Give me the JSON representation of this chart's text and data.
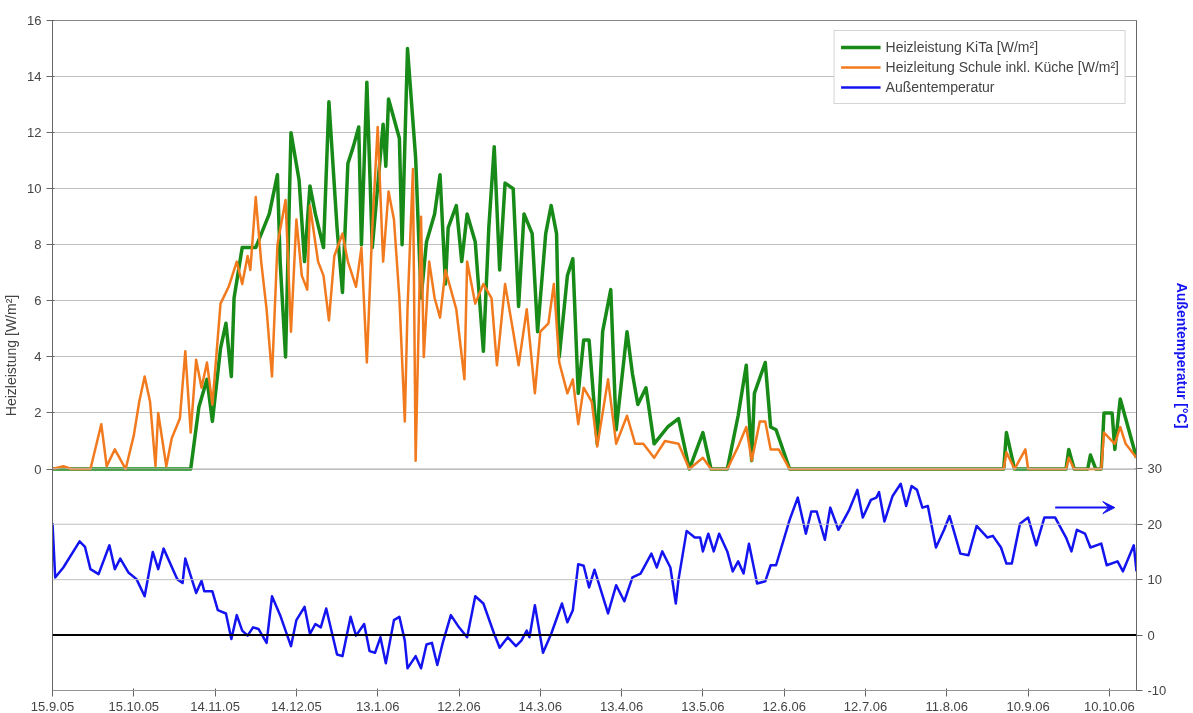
{
  "chart_data": {
    "type": "line",
    "xlabel": null,
    "ylabel": "Heizleistung [W/m²]",
    "y2label": "Außentemperatur [°C]",
    "xlim": [
      "2005-09-15",
      "2006-10-20"
    ],
    "xticks": [
      {
        "value": "2005-09-15",
        "label": "15.9.05"
      },
      {
        "value": "2005-10-15",
        "label": "15.10.05"
      },
      {
        "value": "2005-11-14",
        "label": "14.11.05"
      },
      {
        "value": "2005-12-14",
        "label": "14.12.05"
      },
      {
        "value": "2006-01-13",
        "label": "13.1.06"
      },
      {
        "value": "2006-02-12",
        "label": "12.2.06"
      },
      {
        "value": "2006-03-14",
        "label": "14.3.06"
      },
      {
        "value": "2006-04-13",
        "label": "13.4.06"
      },
      {
        "value": "2006-05-13",
        "label": "13.5.06"
      },
      {
        "value": "2006-06-12",
        "label": "12.6.06"
      },
      {
        "value": "2006-07-12",
        "label": "12.7.06"
      },
      {
        "value": "2006-08-11",
        "label": "11.8.06"
      },
      {
        "value": "2006-09-10",
        "label": "10.9.06"
      },
      {
        "value": "2006-10-10",
        "label": "10.10.06"
      }
    ],
    "ylim": [
      -7.9,
      16
    ],
    "yticks": [
      0,
      2,
      4,
      6,
      8,
      10,
      12,
      14,
      16
    ],
    "y2lim": [
      -10,
      110.9
    ],
    "y2ticks": [
      -10,
      0,
      10,
      20,
      30
    ],
    "grid": "y",
    "legend": "top right",
    "ref_lines": [
      {
        "axis": "y2",
        "value": 0,
        "color": "#000000"
      }
    ],
    "series": [
      {
        "name": "Heizleistung KiTa [W/m²]",
        "color": "#178a17",
        "x": [
          "2005-09-15",
          "2005-11-03",
          "2005-11-05",
          "2005-11-08",
          "2005-11-11",
          "2005-11-13",
          "2005-11-16",
          "2005-11-18",
          "2005-11-20",
          "2005-11-21",
          "2005-11-24",
          "2005-11-29",
          "2005-12-04",
          "2005-12-07",
          "2005-12-08",
          "2005-12-10",
          "2005-12-12",
          "2005-12-15",
          "2005-12-17",
          "2005-12-19",
          "2005-12-21",
          "2005-12-24",
          "2005-12-26",
          "2005-12-29",
          "2005-12-31",
          "2006-01-02",
          "2006-01-04",
          "2006-01-06",
          "2006-01-07",
          "2006-01-09",
          "2006-01-11",
          "2006-01-15",
          "2006-01-16",
          "2006-01-17",
          "2006-01-21",
          "2006-01-22",
          "2006-01-24",
          "2006-01-27",
          "2006-01-29",
          "2006-01-31",
          "2006-02-03",
          "2006-02-05",
          "2006-02-07",
          "2006-02-08",
          "2006-02-11",
          "2006-02-13",
          "2006-02-15",
          "2006-02-18",
          "2006-02-21",
          "2006-02-23",
          "2006-02-25",
          "2006-02-27",
          "2006-03-01",
          "2006-03-04",
          "2006-03-06",
          "2006-03-08",
          "2006-03-11",
          "2006-03-13",
          "2006-03-16",
          "2006-03-18",
          "2006-03-20",
          "2006-03-21",
          "2006-03-24",
          "2006-03-26",
          "2006-03-28",
          "2006-03-30",
          "2006-04-01",
          "2006-04-04",
          "2006-04-06",
          "2006-04-09",
          "2006-04-11",
          "2006-04-15",
          "2006-04-17",
          "2006-04-19",
          "2006-04-22",
          "2006-04-25",
          "2006-04-30",
          "2006-05-04",
          "2006-05-08",
          "2006-05-13",
          "2006-05-16",
          "2006-05-22",
          "2006-05-26",
          "2006-05-29",
          "2006-05-31",
          "2006-06-01",
          "2006-06-05",
          "2006-06-07",
          "2006-06-09",
          "2006-06-14",
          "2006-09-01",
          "2006-09-02",
          "2006-09-05",
          "2006-09-24",
          "2006-09-25",
          "2006-09-27",
          "2006-10-02",
          "2006-10-03",
          "2006-10-05",
          "2006-10-07",
          "2006-10-08",
          "2006-10-11",
          "2006-10-12",
          "2006-10-14",
          "2006-10-16",
          "2006-10-20"
        ],
        "values": [
          0,
          0,
          0,
          2.2,
          3.2,
          1.7,
          4.3,
          5.2,
          3.3,
          6.1,
          7.9,
          7.9,
          9.1,
          10.5,
          7.4,
          4.0,
          12.0,
          10.3,
          7.4,
          10.1,
          9.1,
          7.9,
          13.1,
          8.6,
          6.3,
          10.9,
          11.5,
          12.2,
          8.0,
          13.8,
          7.9,
          12.3,
          10.8,
          13.2,
          11.8,
          8.0,
          15.0,
          11.1,
          6.1,
          8.1,
          9.1,
          10.5,
          6.6,
          8.6,
          9.4,
          7.4,
          9.1,
          8.1,
          4.2,
          8.6,
          11.5,
          7.1,
          10.2,
          10.0,
          5.8,
          9.1,
          8.4,
          4.9,
          8.4,
          9.4,
          8.4,
          4.0,
          6.9,
          7.5,
          2.7,
          4.6,
          4.6,
          0.9,
          4.9,
          6.4,
          1.4,
          4.9,
          3.4,
          2.3,
          2.9,
          0.9,
          1.5,
          1.8,
          0,
          1.3,
          0,
          0,
          1.9,
          3.7,
          0.3,
          2.7,
          3.8,
          1.5,
          1.4,
          0,
          0,
          1.3,
          0,
          0,
          0.7,
          0,
          0,
          0.5,
          0,
          0,
          2.0,
          2.0,
          0.7,
          2.5,
          1.8,
          0.4
        ]
      },
      {
        "name": "Heizleitung Schule inkl. Küche [W/m²]",
        "color": "#f27a1e",
        "x": [
          "2005-09-15",
          "2005-09-19",
          "2005-09-22",
          "2005-09-29",
          "2005-10-03",
          "2005-10-05",
          "2005-10-08",
          "2005-10-12",
          "2005-10-15",
          "2005-10-17",
          "2005-10-19",
          "2005-10-21",
          "2005-10-23",
          "2005-10-24",
          "2005-10-27",
          "2005-10-29",
          "2005-11-01",
          "2005-11-03",
          "2005-11-05",
          "2005-11-07",
          "2005-11-09",
          "2005-11-11",
          "2005-11-13",
          "2005-11-16",
          "2005-11-19",
          "2005-11-22",
          "2005-11-24",
          "2005-11-26",
          "2005-11-27",
          "2005-11-29",
          "2005-12-01",
          "2005-12-03",
          "2005-12-05",
          "2005-12-07",
          "2005-12-10",
          "2005-12-12",
          "2005-12-14",
          "2005-12-16",
          "2005-12-18",
          "2005-12-19",
          "2005-12-22",
          "2005-12-24",
          "2005-12-26",
          "2005-12-28",
          "2005-12-31",
          "2006-01-02",
          "2006-01-05",
          "2006-01-07",
          "2006-01-09",
          "2006-01-11",
          "2006-01-13",
          "2006-01-15",
          "2006-01-17",
          "2006-01-19",
          "2006-01-21",
          "2006-01-23",
          "2006-01-24",
          "2006-01-26",
          "2006-01-27",
          "2006-01-29",
          "2006-01-30",
          "2006-02-01",
          "2006-02-03",
          "2006-02-05",
          "2006-02-07",
          "2006-02-09",
          "2006-02-11",
          "2006-02-14",
          "2006-02-15",
          "2006-02-18",
          "2006-02-21",
          "2006-02-24",
          "2006-02-26",
          "2006-03-01",
          "2006-03-04",
          "2006-03-06",
          "2006-03-09",
          "2006-03-12",
          "2006-03-14",
          "2006-03-17",
          "2006-03-19",
          "2006-03-21",
          "2006-03-24",
          "2006-03-26",
          "2006-03-28",
          "2006-03-30",
          "2006-04-02",
          "2006-04-04",
          "2006-04-08",
          "2006-04-11",
          "2006-04-15",
          "2006-04-18",
          "2006-04-21",
          "2006-04-25",
          "2006-04-29",
          "2006-05-04",
          "2006-05-08",
          "2006-05-13",
          "2006-05-16",
          "2006-05-22",
          "2006-05-26",
          "2006-05-29",
          "2006-05-31",
          "2006-06-03",
          "2006-06-05",
          "2006-06-07",
          "2006-06-10",
          "2006-06-14",
          "2006-09-01",
          "2006-09-02",
          "2006-09-05",
          "2006-09-09",
          "2006-09-10",
          "2006-09-24",
          "2006-09-25",
          "2006-09-27",
          "2006-10-07",
          "2006-10-08",
          "2006-10-12",
          "2006-10-14",
          "2006-10-16",
          "2006-10-20"
        ],
        "values": [
          0,
          0.1,
          0,
          0,
          1.6,
          0.1,
          0.7,
          0,
          1.2,
          2.4,
          3.3,
          2.4,
          0.1,
          2.0,
          0.1,
          1.1,
          1.8,
          4.2,
          1.3,
          3.9,
          2.9,
          3.8,
          2.3,
          5.9,
          6.5,
          7.4,
          6.6,
          7.6,
          7.1,
          9.7,
          7.4,
          5.7,
          3.3,
          8.0,
          9.6,
          4.9,
          8.9,
          6.9,
          6.4,
          9.4,
          7.4,
          6.9,
          5.3,
          7.6,
          8.4,
          7.4,
          6.5,
          7.9,
          3.8,
          8.6,
          12.2,
          7.4,
          9.9,
          8.9,
          6.1,
          1.7,
          5.7,
          10.7,
          0.3,
          9.0,
          4.0,
          7.4,
          6.1,
          5.4,
          7.1,
          6.4,
          5.7,
          3.2,
          7.4,
          5.9,
          6.6,
          6.1,
          3.7,
          6.6,
          4.9,
          3.7,
          5.7,
          2.7,
          4.9,
          5.2,
          6.6,
          3.8,
          2.7,
          3.2,
          1.6,
          2.9,
          2.4,
          0.8,
          3.2,
          0.9,
          1.9,
          0.9,
          0.9,
          0.4,
          1.0,
          0.9,
          0,
          0.4,
          0,
          0,
          0.8,
          1.5,
          0.3,
          1.7,
          1.7,
          0.7,
          0.7,
          0,
          0,
          0.6,
          0,
          0.7,
          0,
          0,
          0.4,
          0,
          0,
          1.3,
          0.9,
          1.5,
          0.9,
          0.4
        ]
      },
      {
        "name": "Außentemperatur",
        "color": "#1414f0",
        "axis": "y2",
        "x": [
          "2005-09-15",
          "2005-09-16",
          "2005-09-19",
          "2005-09-25",
          "2005-09-27",
          "2005-09-29",
          "2005-10-02",
          "2005-10-06",
          "2005-10-08",
          "2005-10-10",
          "2005-10-13",
          "2005-10-16",
          "2005-10-19",
          "2005-10-22",
          "2005-10-24",
          "2005-10-26",
          "2005-10-31",
          "2005-11-02",
          "2005-11-03",
          "2005-11-07",
          "2005-11-09",
          "2005-11-10",
          "2005-11-13",
          "2005-11-15",
          "2005-11-18",
          "2005-11-20",
          "2005-11-22",
          "2005-11-24",
          "2005-11-26",
          "2005-11-28",
          "2005-11-30",
          "2005-12-03",
          "2005-12-05",
          "2005-12-08",
          "2005-12-12",
          "2005-12-14",
          "2005-12-17",
          "2005-12-19",
          "2005-12-21",
          "2005-12-23",
          "2005-12-25",
          "2005-12-29",
          "2005-12-31",
          "2006-01-03",
          "2006-01-05",
          "2006-01-08",
          "2006-01-10",
          "2006-01-12",
          "2006-01-14",
          "2006-01-16",
          "2006-01-19",
          "2006-01-21",
          "2006-01-23",
          "2006-01-24",
          "2006-01-27",
          "2006-01-29",
          "2006-01-31",
          "2006-02-02",
          "2006-02-04",
          "2006-02-06",
          "2006-02-09",
          "2006-02-12",
          "2006-02-15",
          "2006-02-18",
          "2006-02-21",
          "2006-02-25",
          "2006-02-27",
          "2006-03-02",
          "2006-03-05",
          "2006-03-07",
          "2006-03-09",
          "2006-03-10",
          "2006-03-12",
          "2006-03-15",
          "2006-03-18",
          "2006-03-22",
          "2006-03-24",
          "2006-03-26",
          "2006-03-28",
          "2006-03-30",
          "2006-04-01",
          "2006-04-03",
          "2006-04-08",
          "2006-04-11",
          "2006-04-14",
          "2006-04-17",
          "2006-04-20",
          "2006-04-24",
          "2006-04-26",
          "2006-04-28",
          "2006-05-01",
          "2006-05-03",
          "2006-05-04",
          "2006-05-07",
          "2006-05-10",
          "2006-05-12",
          "2006-05-13",
          "2006-05-15",
          "2006-05-17",
          "2006-05-19",
          "2006-05-22",
          "2006-05-24",
          "2006-05-26",
          "2006-05-28",
          "2006-05-30",
          "2006-06-02",
          "2006-06-05",
          "2006-06-07",
          "2006-06-09",
          "2006-06-14",
          "2006-06-17",
          "2006-06-20",
          "2006-06-22",
          "2006-06-24",
          "2006-06-27",
          "2006-06-29",
          "2006-07-02",
          "2006-07-06",
          "2006-07-09",
          "2006-07-11",
          "2006-07-14",
          "2006-07-16",
          "2006-07-17",
          "2006-07-19",
          "2006-07-22",
          "2006-07-25",
          "2006-07-27",
          "2006-07-29",
          "2006-07-31",
          "2006-08-02",
          "2006-08-04",
          "2006-08-07",
          "2006-08-10",
          "2006-08-12",
          "2006-08-16",
          "2006-08-19",
          "2006-08-22",
          "2006-08-26",
          "2006-08-28",
          "2006-08-31",
          "2006-09-02",
          "2006-09-04",
          "2006-09-07",
          "2006-09-10",
          "2006-09-13",
          "2006-09-16",
          "2006-09-20",
          "2006-09-24",
          "2006-09-26",
          "2006-09-28",
          "2006-10-01",
          "2006-10-03",
          "2006-10-07",
          "2006-10-09",
          "2006-10-13",
          "2006-10-15",
          "2006-10-19",
          "2006-10-20"
        ],
        "values": [
          20.2,
          10.4,
          12.2,
          16.9,
          15.9,
          11.9,
          11.0,
          16.2,
          11.9,
          13.8,
          11.3,
          10.1,
          7.0,
          15,
          11.9,
          15.6,
          10.1,
          9.4,
          13.8,
          7.6,
          9.8,
          7.9,
          7.9,
          4.5,
          3.9,
          -0.7,
          3.6,
          0.8,
          -0.1,
          1.4,
          1.1,
          -1.4,
          7.0,
          3.6,
          -2.0,
          2.7,
          5.1,
          0.2,
          2.0,
          1.4,
          4.8,
          -3.5,
          -3.8,
          3.3,
          -0.1,
          2.0,
          -2.9,
          -3.2,
          -0.4,
          -5.1,
          2.7,
          3.3,
          -1.0,
          -6.0,
          -3.8,
          -6.0,
          -1.7,
          -1.4,
          -5.4,
          -1.4,
          3.6,
          1.4,
          -0.4,
          7.0,
          5.7,
          0.2,
          -2.3,
          -0.4,
          -2.0,
          -1.0,
          0.8,
          -0.4,
          5.4,
          -3.2,
          0.2,
          5.7,
          2.3,
          4.5,
          12.8,
          12.5,
          8.6,
          11.8,
          3.9,
          9.0,
          6.1,
          10.4,
          11.1,
          14.7,
          12.2,
          15.1,
          12.2,
          5.7,
          10.0,
          18.8,
          17.6,
          17.6,
          15.1,
          18.3,
          15.1,
          18.3,
          15.1,
          11.5,
          13.3,
          11.1,
          16.5,
          9.3,
          9.7,
          12.6,
          12.6,
          20.8,
          24.8,
          18.3,
          22.3,
          22.3,
          17.2,
          23.0,
          19.0,
          22.6,
          26.2,
          21.2,
          24.4,
          24.8,
          25.8,
          20.5,
          25.1,
          27.3,
          23.3,
          26.9,
          26.2,
          23.0,
          23.3,
          15.8,
          19.0,
          21.5,
          14.7,
          14.4,
          19.7,
          17.6,
          17.9,
          15.8,
          12.9,
          12.9,
          20.1,
          21.2,
          16.2,
          21.2,
          21.2,
          17.6,
          15.1,
          19.0,
          18.3,
          15.8,
          16.5,
          12.6,
          13.3,
          11.5,
          16.2,
          11.5
        ]
      }
    ]
  }
}
